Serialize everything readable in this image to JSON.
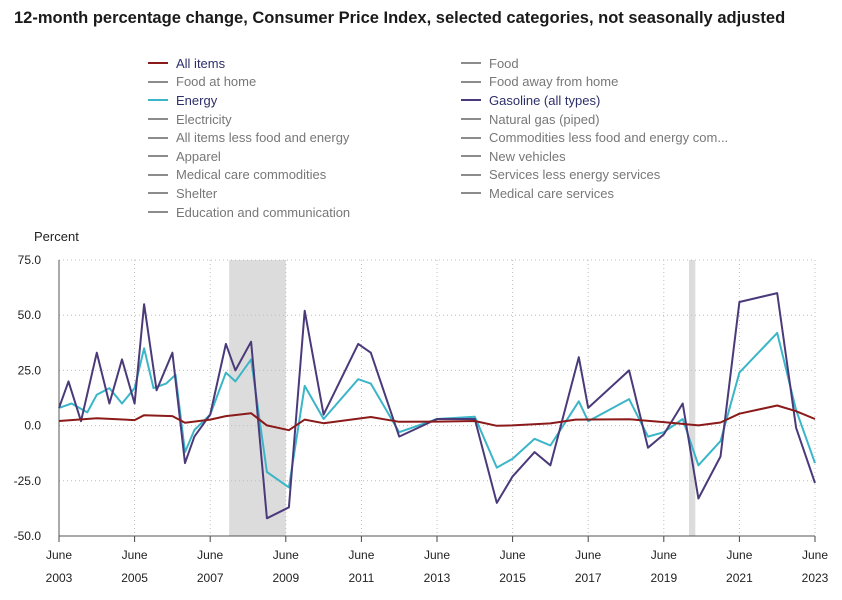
{
  "title": "12-month percentage change, Consumer Price Index, selected categories, not seasonally adjusted",
  "legend": {
    "left": [
      {
        "label": "All items",
        "color": "#8b1a1a",
        "active": true
      },
      {
        "label": "Food at home",
        "color": "#8c8c8c",
        "active": false
      },
      {
        "label": "Energy",
        "color": "#3bb5c8",
        "active": true
      },
      {
        "label": "Electricity",
        "color": "#8c8c8c",
        "active": false
      },
      {
        "label": "All items less food and energy",
        "color": "#8c8c8c",
        "active": false
      },
      {
        "label": "Apparel",
        "color": "#8c8c8c",
        "active": false
      },
      {
        "label": "Medical care commodities",
        "color": "#8c8c8c",
        "active": false
      },
      {
        "label": "Shelter",
        "color": "#8c8c8c",
        "active": false
      },
      {
        "label": "Education and communication",
        "color": "#8c8c8c",
        "active": false
      }
    ],
    "right": [
      {
        "label": "Food",
        "color": "#8c8c8c",
        "active": false
      },
      {
        "label": "Food away from home",
        "color": "#8c8c8c",
        "active": false
      },
      {
        "label": "Gasoline (all types)",
        "color": "#4b3a7a",
        "active": true
      },
      {
        "label": "Natural gas (piped)",
        "color": "#8c8c8c",
        "active": false
      },
      {
        "label": "Commodities less food and energy com...",
        "color": "#8c8c8c",
        "active": false
      },
      {
        "label": "New vehicles",
        "color": "#8c8c8c",
        "active": false
      },
      {
        "label": "Services less energy services",
        "color": "#8c8c8c",
        "active": false
      },
      {
        "label": "Medical care services",
        "color": "#8c8c8c",
        "active": false
      }
    ]
  },
  "chart_data": {
    "type": "line",
    "title": "12-month percentage change, Consumer Price Index, selected categories, not seasonally adjusted",
    "ylabel": "Percent",
    "xlabel": "",
    "ylim": [
      -50,
      75
    ],
    "xlim": [
      "2003-06",
      "2023-06"
    ],
    "yticks": [
      75.0,
      50.0,
      25.0,
      0.0,
      -25.0,
      -50.0
    ],
    "ytick_labels": [
      "75.0",
      "50.0",
      "25.0",
      "0.0",
      "-25.0",
      "-50.0"
    ],
    "xticks": [
      {
        "month": "June",
        "year": "2003"
      },
      {
        "month": "June",
        "year": "2005"
      },
      {
        "month": "June",
        "year": "2007"
      },
      {
        "month": "June",
        "year": "2009"
      },
      {
        "month": "June",
        "year": "2011"
      },
      {
        "month": "June",
        "year": "2013"
      },
      {
        "month": "June",
        "year": "2015"
      },
      {
        "month": "June",
        "year": "2017"
      },
      {
        "month": "June",
        "year": "2019"
      },
      {
        "month": "June",
        "year": "2021"
      },
      {
        "month": "June",
        "year": "2023"
      }
    ],
    "grid": true,
    "recessions": [
      [
        "2007-12",
        "2009-06"
      ],
      [
        "2020-02",
        "2020-04"
      ]
    ],
    "series": [
      {
        "name": "All items",
        "color": "#8b1a1a",
        "points": [
          [
            "2003-06",
            2.1
          ],
          [
            "2004-06",
            3.3
          ],
          [
            "2005-06",
            2.5
          ],
          [
            "2005-09",
            4.7
          ],
          [
            "2006-06",
            4.3
          ],
          [
            "2006-10",
            1.3
          ],
          [
            "2007-06",
            2.7
          ],
          [
            "2007-11",
            4.3
          ],
          [
            "2008-07",
            5.6
          ],
          [
            "2008-12",
            0.1
          ],
          [
            "2009-07",
            -2.1
          ],
          [
            "2009-12",
            2.7
          ],
          [
            "2010-06",
            1.1
          ],
          [
            "2011-09",
            3.9
          ],
          [
            "2012-06",
            1.7
          ],
          [
            "2013-06",
            1.8
          ],
          [
            "2014-06",
            2.1
          ],
          [
            "2015-01",
            -0.1
          ],
          [
            "2015-06",
            0.1
          ],
          [
            "2016-06",
            1.0
          ],
          [
            "2017-02",
            2.7
          ],
          [
            "2018-07",
            2.9
          ],
          [
            "2019-06",
            1.6
          ],
          [
            "2020-05",
            0.1
          ],
          [
            "2020-12",
            1.4
          ],
          [
            "2021-06",
            5.4
          ],
          [
            "2022-06",
            9.1
          ],
          [
            "2022-12",
            6.5
          ],
          [
            "2023-06",
            3.0
          ]
        ]
      },
      {
        "name": "Energy",
        "color": "#3bb5c8",
        "points": [
          [
            "2003-06",
            8.0
          ],
          [
            "2003-10",
            10.0
          ],
          [
            "2004-03",
            6.0
          ],
          [
            "2004-06",
            14.0
          ],
          [
            "2004-10",
            17.0
          ],
          [
            "2005-02",
            10.0
          ],
          [
            "2005-06",
            17.0
          ],
          [
            "2005-09",
            35.0
          ],
          [
            "2005-12",
            17.0
          ],
          [
            "2006-04",
            19.0
          ],
          [
            "2006-07",
            23.0
          ],
          [
            "2006-10",
            -12.0
          ],
          [
            "2007-01",
            -2.0
          ],
          [
            "2007-06",
            5.0
          ],
          [
            "2007-11",
            24.0
          ],
          [
            "2008-02",
            20.0
          ],
          [
            "2008-07",
            30.0
          ],
          [
            "2008-12",
            -21.0
          ],
          [
            "2009-07",
            -28.0
          ],
          [
            "2009-12",
            18.0
          ],
          [
            "2010-06",
            3.0
          ],
          [
            "2011-05",
            21.0
          ],
          [
            "2011-09",
            19.0
          ],
          [
            "2012-06",
            -3.0
          ],
          [
            "2013-06",
            3.0
          ],
          [
            "2014-06",
            4.0
          ],
          [
            "2015-01",
            -19.0
          ],
          [
            "2015-06",
            -15.0
          ],
          [
            "2016-01",
            -6.0
          ],
          [
            "2016-06",
            -9.0
          ],
          [
            "2017-03",
            11.0
          ],
          [
            "2017-06",
            2.0
          ],
          [
            "2018-07",
            12.0
          ],
          [
            "2019-01",
            -5.0
          ],
          [
            "2019-06",
            -3.0
          ],
          [
            "2019-12",
            3.0
          ],
          [
            "2020-05",
            -18.0
          ],
          [
            "2020-12",
            -7.0
          ],
          [
            "2021-06",
            24.0
          ],
          [
            "2022-06",
            42.0
          ],
          [
            "2022-12",
            7.0
          ],
          [
            "2023-06",
            -17.0
          ]
        ]
      },
      {
        "name": "Gasoline (all types)",
        "color": "#4b3a7a",
        "points": [
          [
            "2003-06",
            8.0
          ],
          [
            "2003-09",
            20.0
          ],
          [
            "2004-01",
            2.0
          ],
          [
            "2004-06",
            33.0
          ],
          [
            "2004-10",
            10.0
          ],
          [
            "2005-02",
            30.0
          ],
          [
            "2005-06",
            10.0
          ],
          [
            "2005-09",
            55.0
          ],
          [
            "2006-01",
            16.0
          ],
          [
            "2006-06",
            33.0
          ],
          [
            "2006-10",
            -17.0
          ],
          [
            "2007-01",
            -5.0
          ],
          [
            "2007-06",
            5.0
          ],
          [
            "2007-11",
            37.0
          ],
          [
            "2008-02",
            25.0
          ],
          [
            "2008-07",
            38.0
          ],
          [
            "2008-12",
            -42.0
          ],
          [
            "2009-07",
            -37.0
          ],
          [
            "2009-12",
            52.0
          ],
          [
            "2010-06",
            5.0
          ],
          [
            "2011-05",
            37.0
          ],
          [
            "2011-09",
            33.0
          ],
          [
            "2012-06",
            -5.0
          ],
          [
            "2013-06",
            3.0
          ],
          [
            "2014-06",
            3.0
          ],
          [
            "2015-01",
            -35.0
          ],
          [
            "2015-06",
            -23.0
          ],
          [
            "2016-01",
            -12.0
          ],
          [
            "2016-06",
            -18.0
          ],
          [
            "2017-03",
            31.0
          ],
          [
            "2017-06",
            8.0
          ],
          [
            "2018-07",
            25.0
          ],
          [
            "2019-01",
            -10.0
          ],
          [
            "2019-06",
            -4.0
          ],
          [
            "2019-12",
            10.0
          ],
          [
            "2020-05",
            -33.0
          ],
          [
            "2020-12",
            -14.0
          ],
          [
            "2021-06",
            56.0
          ],
          [
            "2022-06",
            60.0
          ],
          [
            "2022-12",
            -1.0
          ],
          [
            "2023-06",
            -26.0
          ]
        ]
      }
    ]
  }
}
